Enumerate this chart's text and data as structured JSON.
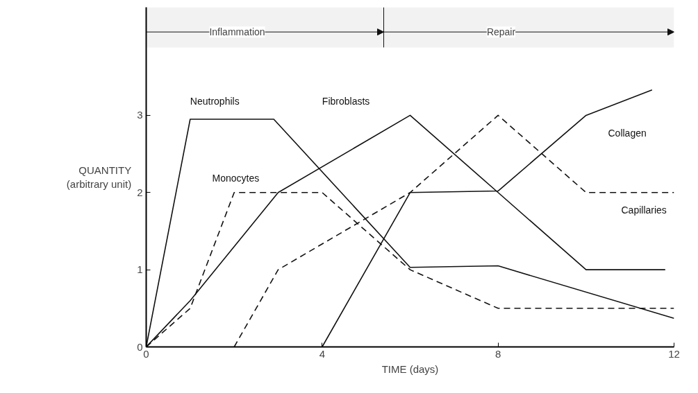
{
  "chart_data": {
    "type": "line",
    "xlabel": "TIME (days)",
    "ylabel": "QUANTITY\n(arbitrary unit)",
    "xlim": [
      0,
      12
    ],
    "ylim": [
      0,
      4.4
    ],
    "xticks": [
      0,
      4,
      8,
      12
    ],
    "yticks": [
      0,
      1,
      2,
      3
    ],
    "grid": false,
    "legend": false,
    "marker": "none",
    "series": [
      {
        "name": "Neutrophils",
        "color": "#111111",
        "line_style": "solid",
        "x": [
          0,
          1,
          2.9,
          6,
          8,
          12
        ],
        "values": [
          0,
          2.95,
          2.95,
          1.03,
          1.05,
          0.37
        ]
      },
      {
        "name": "Fibroblasts",
        "color": "#111111",
        "line_style": "solid",
        "x": [
          0,
          1,
          3,
          6,
          8,
          10,
          11.8
        ],
        "values": [
          0,
          0.6,
          2,
          3,
          2,
          1,
          1
        ]
      },
      {
        "name": "Collagen",
        "color": "#111111",
        "line_style": "solid",
        "x": [
          4,
          6,
          8,
          10,
          11.5
        ],
        "values": [
          0,
          2,
          2.02,
          3,
          3.33
        ]
      },
      {
        "name": "Monocytes",
        "color": "#111111",
        "line_style": "dashed",
        "x": [
          0,
          1,
          2,
          4,
          6,
          8,
          12
        ],
        "values": [
          0,
          0.5,
          2,
          2,
          1,
          0.5,
          0.5
        ]
      },
      {
        "name": "Capillaries",
        "color": "#111111",
        "line_style": "dashed",
        "x": [
          2,
          3,
          6,
          8,
          10,
          12
        ],
        "values": [
          0,
          1,
          2,
          3,
          2,
          2
        ]
      }
    ],
    "ref_lines": [
      {
        "axis": "x",
        "value": 5.4,
        "color": "#111111"
      }
    ],
    "bands": [
      {
        "axis": "x",
        "from": 0,
        "to": 5.4,
        "label": "Inflammation",
        "color": "#f2f2f2"
      },
      {
        "axis": "x",
        "from": 5.4,
        "to": 12,
        "label": "Repair",
        "color": "#f2f2f2"
      }
    ]
  }
}
